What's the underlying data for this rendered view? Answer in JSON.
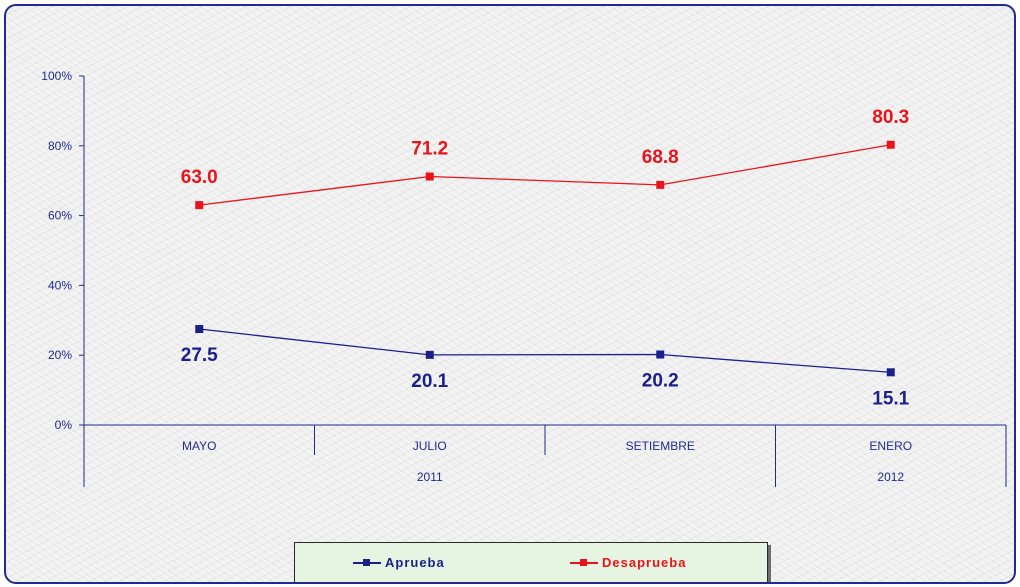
{
  "chart_data": {
    "type": "line",
    "categories": [
      "MAYO",
      "JULIO",
      "SETIEMBRE",
      "ENERO"
    ],
    "year_groups": [
      {
        "label": "2011",
        "span": [
          0,
          2
        ]
      },
      {
        "label": "2012",
        "span": [
          3,
          3
        ]
      }
    ],
    "ylim": [
      0,
      100
    ],
    "yticks": [
      "0%",
      "20%",
      "40%",
      "60%",
      "80%",
      "100%"
    ],
    "grid": false,
    "legend_position": "bottom",
    "series": [
      {
        "name": "Aprueba",
        "values": [
          27.5,
          20.1,
          20.2,
          15.1
        ],
        "labels": [
          "27.5",
          "20.1",
          "20.2",
          "15.1"
        ],
        "color": "#1a1f8c"
      },
      {
        "name": "Desaprueba",
        "values": [
          63.0,
          71.2,
          68.8,
          80.3
        ],
        "labels": [
          "63.0",
          "71.2",
          "68.8",
          "80.3"
        ],
        "color": "#e8141a"
      }
    ]
  }
}
